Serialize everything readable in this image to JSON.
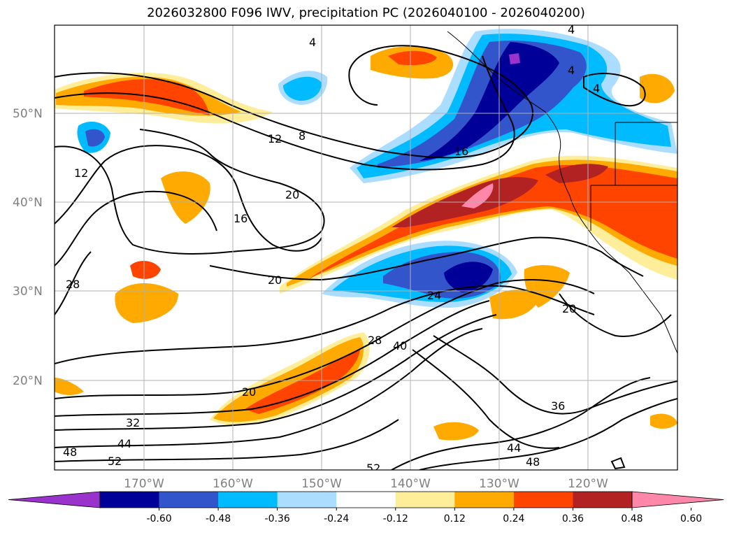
{
  "title": "2026032800 F096 IWV, precipitation PC (2026040100 - 2026040200)",
  "latitude_labels": [
    "50°N",
    "40°N",
    "30°N",
    "20°N"
  ],
  "longitude_labels": [
    "170°W",
    "160°W",
    "150°W",
    "140°W",
    "130°W",
    "120°W"
  ],
  "contour_labels": [
    "4",
    "4",
    "4",
    "4",
    "8",
    "12",
    "12",
    "16",
    "16",
    "20",
    "20",
    "20",
    "20",
    "24",
    "28",
    "28",
    "32",
    "36",
    "40",
    "44",
    "44",
    "48",
    "48",
    "52",
    "52"
  ],
  "colorbar": {
    "tick_labels": [
      "-0.60",
      "-0.48",
      "-0.36",
      "-0.24",
      "-0.12",
      "0.12",
      "0.24",
      "0.36",
      "0.48",
      "0.60"
    ],
    "colors": [
      "#9933cc",
      "#000099",
      "#3355cc",
      "#00bbff",
      "#aaddff",
      "#ffffff",
      "#ffee99",
      "#ffaa00",
      "#ff4400",
      "#b22222",
      "#ff88aa"
    ]
  }
}
